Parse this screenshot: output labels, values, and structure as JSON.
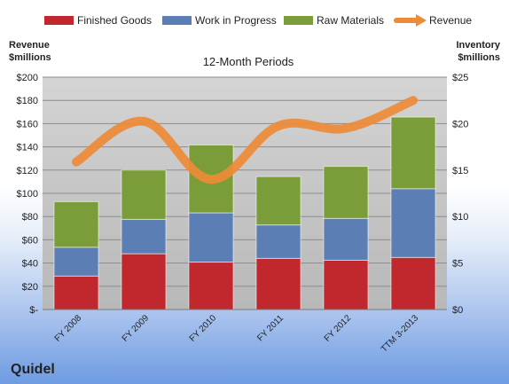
{
  "company": "Quidel",
  "chart_data": {
    "type": "bar",
    "stacked": true,
    "title": "12-Month Periods",
    "ylabel_left": "Revenue\n$millions",
    "ylabel_right": "Inventory\n$millions",
    "categories": [
      "FY 2008",
      "FY 2009",
      "FY 2010",
      "FY 2011",
      "FY 2012",
      "TTM 3-2013"
    ],
    "y_left_ticks": [
      "$-",
      "$20",
      "$40",
      "$60",
      "$80",
      "$100",
      "$120",
      "$140",
      "$160",
      "$180",
      "$200"
    ],
    "y_right_ticks": [
      "$0",
      "$5",
      "$10",
      "$15",
      "$20",
      "$25"
    ],
    "ylim_left": [
      0,
      200
    ],
    "ylim_right": [
      0,
      25
    ],
    "grid": true,
    "legend_position": "top",
    "series": [
      {
        "name": "Finished Goods",
        "axis": "right",
        "kind": "bar",
        "color": "#c0282d",
        "values": [
          3.6,
          6.0,
          5.1,
          5.5,
          5.3,
          5.6
        ]
      },
      {
        "name": "Work in Progress",
        "axis": "right",
        "kind": "bar",
        "color": "#5b7fb4",
        "values": [
          3.1,
          3.7,
          5.3,
          3.6,
          4.5,
          7.4
        ]
      },
      {
        "name": "Raw Materials",
        "axis": "right",
        "kind": "bar",
        "color": "#7a9d3a",
        "values": [
          4.9,
          5.3,
          7.3,
          5.2,
          5.6,
          7.7
        ]
      },
      {
        "name": "Revenue",
        "axis": "left",
        "kind": "line",
        "color": "#ee8b36",
        "values": [
          127,
          162,
          112,
          158,
          156,
          180
        ]
      }
    ]
  }
}
